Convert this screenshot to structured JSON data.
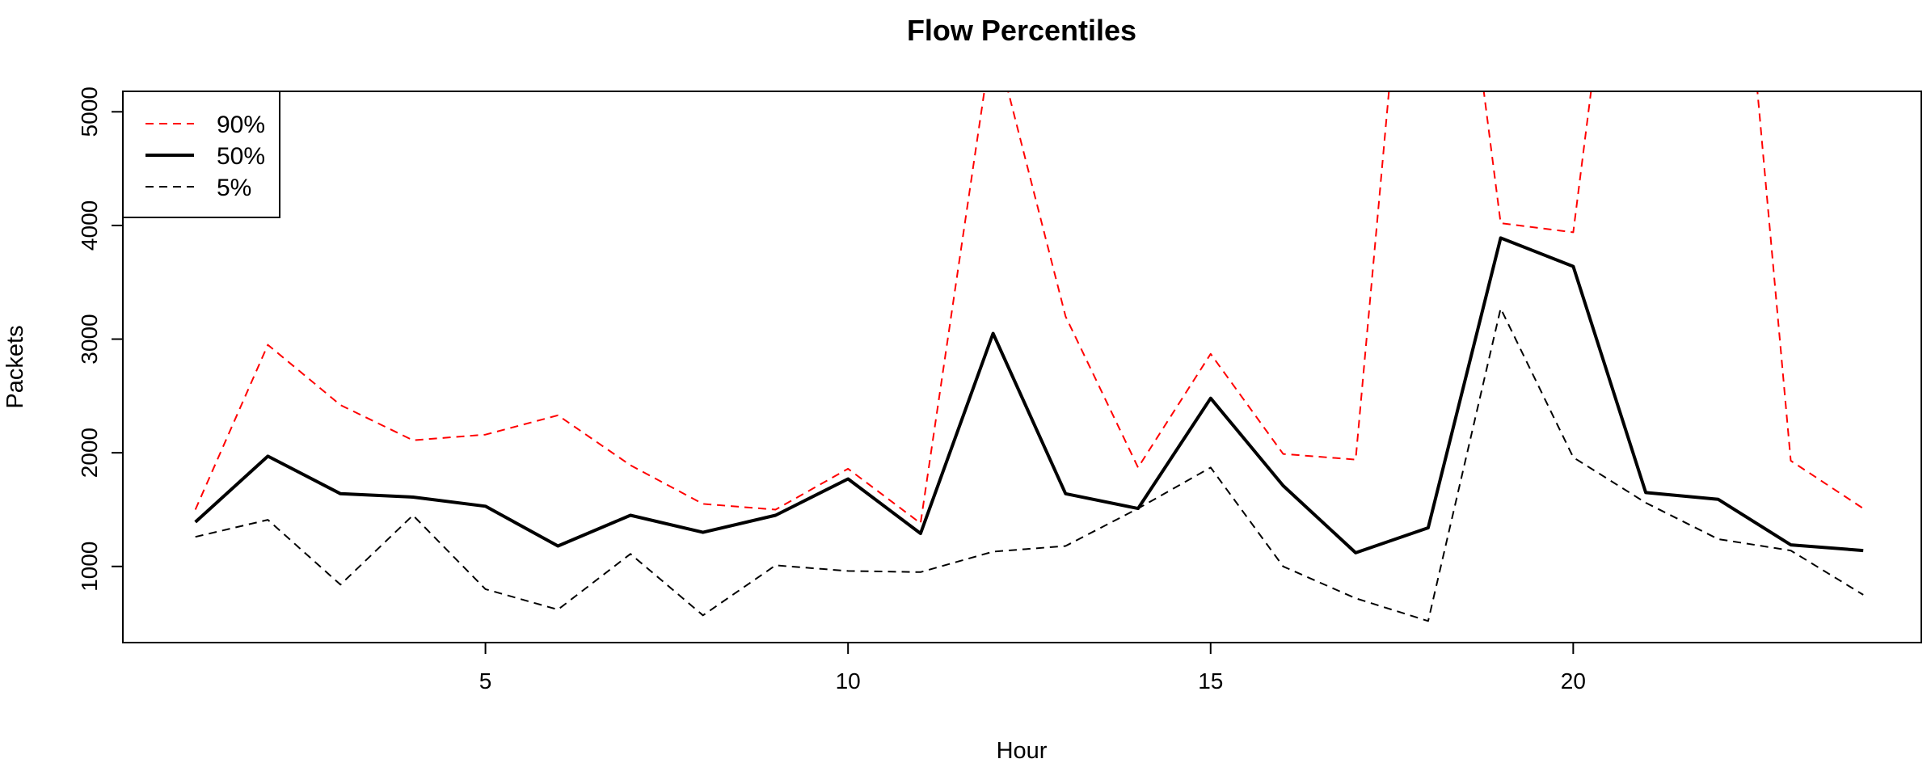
{
  "chart_data": {
    "type": "line",
    "title": "Flow Percentiles",
    "xlabel": "Hour",
    "ylabel": "Packets",
    "x": [
      1,
      2,
      3,
      4,
      5,
      6,
      7,
      8,
      9,
      10,
      11,
      12,
      13,
      14,
      15,
      16,
      17,
      18,
      19,
      20,
      21,
      22,
      23,
      24
    ],
    "xlim": [
      0.0,
      24.8
    ],
    "ylim": [
      330,
      5180
    ],
    "xticks": [
      5,
      10,
      15,
      20
    ],
    "xtick_labels": [
      "5",
      "10",
      "15",
      "20"
    ],
    "yticks": [
      1000,
      2000,
      3000,
      4000,
      5000
    ],
    "ytick_labels": [
      "1000",
      "2000",
      "3000",
      "4000",
      "5000"
    ],
    "legend_position": "top-left",
    "series": [
      {
        "name": "90%",
        "color": "#ff0000",
        "style": "dashed",
        "values": [
          1500,
          2950,
          2420,
          2110,
          2160,
          2330,
          1890,
          1550,
          1500,
          1860,
          1380,
          5700,
          3200,
          1870,
          2870,
          1990,
          1940,
          9000,
          4020,
          3940,
          9000,
          9000,
          1930,
          1510
        ]
      },
      {
        "name": "50%",
        "color": "#000000",
        "style": "solid",
        "values": [
          1390,
          1970,
          1640,
          1610,
          1530,
          1180,
          1450,
          1300,
          1450,
          1770,
          1290,
          3050,
          1640,
          1510,
          2480,
          1710,
          1120,
          1340,
          3890,
          3640,
          1650,
          1590,
          1190,
          1140
        ]
      },
      {
        "name": "5%",
        "color": "#000000",
        "style": "dashed",
        "values": [
          1260,
          1410,
          840,
          1450,
          800,
          620,
          1110,
          570,
          1010,
          960,
          950,
          1130,
          1180,
          1510,
          1870,
          1000,
          720,
          520,
          3270,
          1960,
          1560,
          1240,
          1140,
          750
        ]
      }
    ]
  }
}
